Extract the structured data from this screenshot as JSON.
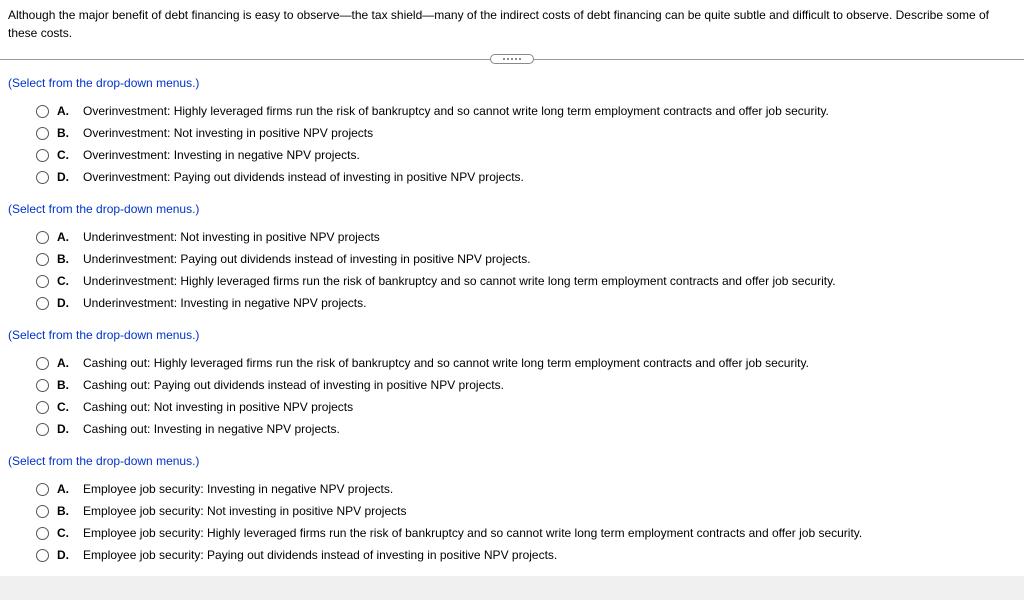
{
  "question": "Although the major benefit of debt financing is easy to observe—the tax shield—many of the indirect costs of debt financing can be quite subtle and difficult to observe. Describe some of these costs.",
  "instruction": "(Select from the drop-down menus.)",
  "groups": [
    {
      "options": [
        {
          "letter": "A.",
          "text": "Overinvestment: Highly leveraged firms run the risk of bankruptcy and so cannot write long term employment contracts and offer job security."
        },
        {
          "letter": "B.",
          "text": "Overinvestment: Not investing in positive NPV projects"
        },
        {
          "letter": "C.",
          "text": "Overinvestment: Investing in negative NPV projects."
        },
        {
          "letter": "D.",
          "text": "Overinvestment: Paying out dividends instead of investing in positive NPV projects."
        }
      ]
    },
    {
      "options": [
        {
          "letter": "A.",
          "text": "Underinvestment: Not investing in positive NPV projects"
        },
        {
          "letter": "B.",
          "text": "Underinvestment: Paying out dividends instead of investing in positive NPV projects."
        },
        {
          "letter": "C.",
          "text": "Underinvestment: Highly leveraged firms run the risk of bankruptcy and so cannot write long term employment contracts and offer job security."
        },
        {
          "letter": "D.",
          "text": "Underinvestment: Investing in negative NPV projects."
        }
      ]
    },
    {
      "options": [
        {
          "letter": "A.",
          "text": "Cashing out: Highly leveraged firms run the risk of bankruptcy and so cannot write long term employment contracts and offer job security."
        },
        {
          "letter": "B.",
          "text": "Cashing out: Paying out dividends instead of investing in positive NPV projects."
        },
        {
          "letter": "C.",
          "text": "Cashing out: Not investing in positive NPV projects"
        },
        {
          "letter": "D.",
          "text": "Cashing out: Investing in negative NPV projects."
        }
      ]
    },
    {
      "options": [
        {
          "letter": "A.",
          "text": "Employee job security: Investing in negative NPV projects."
        },
        {
          "letter": "B.",
          "text": "Employee job security: Not investing in positive NPV projects"
        },
        {
          "letter": "C.",
          "text": "Employee job security: Highly leveraged firms run the risk of bankruptcy and so cannot write long term employment contracts and offer job security."
        },
        {
          "letter": "D.",
          "text": "Employee job security: Paying out dividends instead of investing in positive NPV projects."
        }
      ]
    }
  ]
}
